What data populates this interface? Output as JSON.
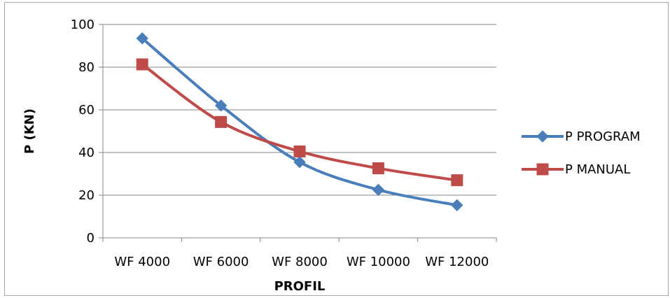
{
  "chart_data": {
    "type": "line",
    "categories": [
      "WF 4000",
      "WF 6000",
      "WF 8000",
      "WF 10000",
      "WF 12000"
    ],
    "series": [
      {
        "name": "P PROGRAM",
        "values": [
          93.5,
          62,
          35.5,
          22.5,
          15.3
        ],
        "color": "#4a7ebb",
        "marker": "diamond"
      },
      {
        "name": "P MANUAL",
        "values": [
          81.3,
          54.3,
          40.5,
          32.6,
          27
        ],
        "color": "#be4b48",
        "marker": "square"
      }
    ],
    "xlabel": "PROFIL",
    "ylabel": "P (KN)",
    "ylim": [
      0,
      100
    ],
    "yticks": [
      0,
      20,
      40,
      60,
      80,
      100
    ],
    "grid": true,
    "legend_position": "right",
    "smooth": true
  }
}
